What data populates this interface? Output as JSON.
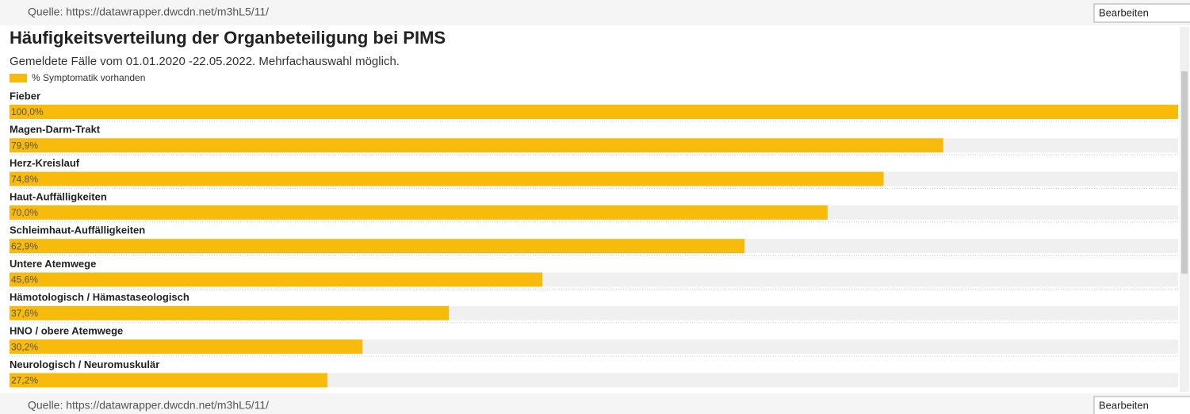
{
  "header": {
    "source": "Quelle: https://datawrapper.dwcdn.net/m3hL5/11/",
    "button": "Bearbeiten"
  },
  "chart_data": {
    "type": "bar",
    "orientation": "horizontal",
    "title": "Häufigkeitsverteilung der Organbeteiligung bei PIMS",
    "subtitle": "Gemeldete Fälle vom 01.01.2020 -22.05.2022. Mehrfachauswahl möglich.",
    "categories": [
      "Fieber",
      "Magen-Darm-Trakt",
      "Herz-Kreislauf",
      "Haut-Auffälligkeiten",
      "Schleimhaut-Auffälligkeiten",
      "Untere Atemwege",
      "Hämotologisch / Hämastaseologisch",
      "HNO / obere Atemwege",
      "Neurologisch / Neuromuskulär"
    ],
    "series": [
      {
        "name": "% Symptomatik vorhanden",
        "color": "#f8bb0c",
        "values": [
          100,
          79.9,
          74.8,
          70,
          62.9,
          45.6,
          37.6,
          30.2,
          27.2
        ],
        "value_labels": [
          "100,0%",
          "79,9%",
          "74,8%",
          "70,0%",
          "62,9%",
          "45,6%",
          "37,6%",
          "30,2%",
          "27,2%"
        ]
      }
    ],
    "xlim": [
      0,
      100
    ]
  },
  "footer": {
    "source": "Quelle: https://datawrapper.dwcdn.net/m3hL5/11/",
    "button": "Bearbeiten"
  }
}
